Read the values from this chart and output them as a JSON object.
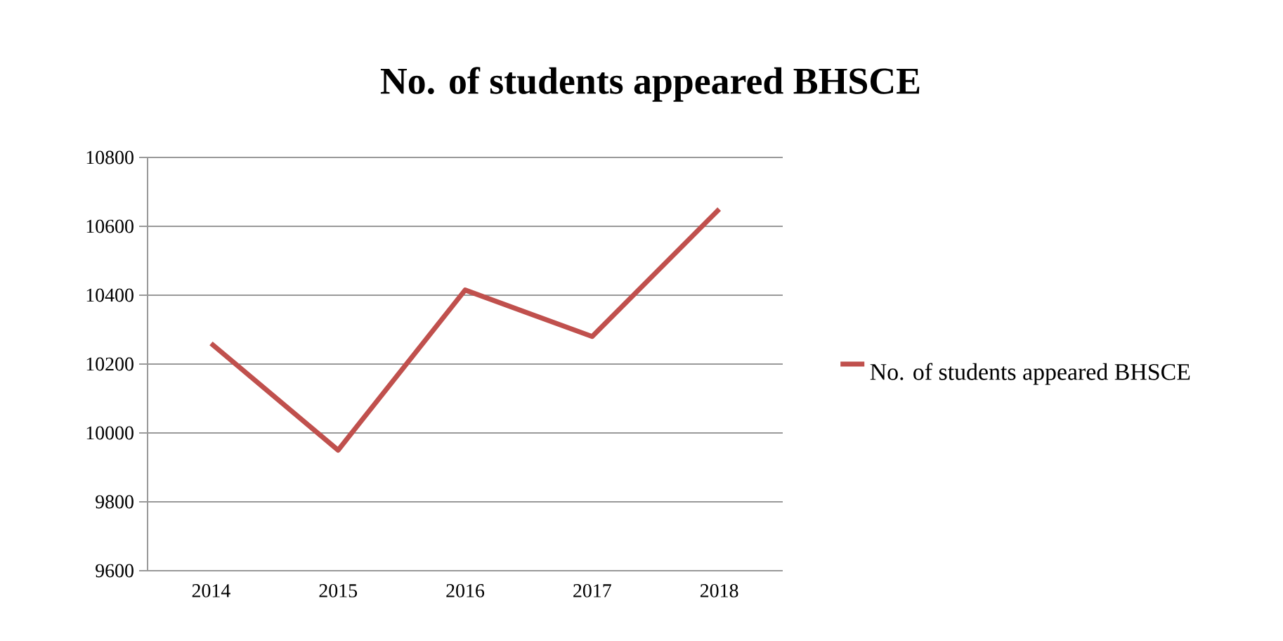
{
  "chart_data": {
    "type": "line",
    "title": "No. of students appeared BHSCE",
    "categories": [
      "2014",
      "2015",
      "2016",
      "2017",
      "2018"
    ],
    "series": [
      {
        "name": "No. of students appeared BHSCE",
        "color": "#c0504d",
        "values": [
          10260,
          9950,
          10415,
          10280,
          10650
        ]
      }
    ],
    "ylim": [
      9600,
      10800
    ],
    "yticks": [
      9600,
      9800,
      10000,
      10200,
      10400,
      10600,
      10800
    ],
    "grid": "y",
    "legend": "right",
    "marker": "none"
  }
}
